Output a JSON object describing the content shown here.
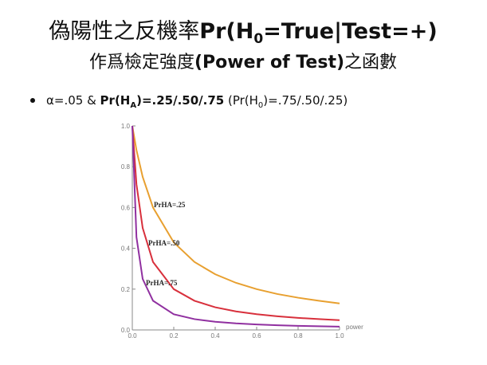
{
  "title": {
    "prefix": "偽陽性之反機率",
    "main": "Pr(H",
    "sub": "0",
    "rest": "=True|Test=+)"
  },
  "subtitle": {
    "prefix": "作爲檢定強度",
    "main": "(Power of Test)",
    "suffix": "之函數"
  },
  "bullet": {
    "a": "α=.05 & ",
    "b": "Pr(H",
    "sub_a": "A",
    "c": ")=.25/.50/.75",
    "d": " (Pr(H",
    "sub_0": "0",
    "e": ")=.75/.50/.25)"
  },
  "chart_data": {
    "type": "line",
    "x_label": "power",
    "x": [
      0,
      0.02,
      0.05,
      0.1,
      0.2,
      0.3,
      0.4,
      0.5,
      0.6,
      0.7,
      0.8,
      0.9,
      1.0
    ],
    "series": [
      {
        "name": "PrHA=.25",
        "color": "#e8a030",
        "values": [
          1,
          0.882,
          0.75,
          0.6,
          0.429,
          0.333,
          0.273,
          0.231,
          0.2,
          0.176,
          0.158,
          0.143,
          0.13
        ]
      },
      {
        "name": "PrHA=.50",
        "color": "#d8303c",
        "values": [
          1,
          0.714,
          0.5,
          0.333,
          0.2,
          0.143,
          0.111,
          0.091,
          0.077,
          0.067,
          0.059,
          0.053,
          0.048
        ]
      },
      {
        "name": "PrHA=.75",
        "color": "#9030a0",
        "values": [
          1,
          0.455,
          0.25,
          0.143,
          0.077,
          0.053,
          0.04,
          0.032,
          0.027,
          0.023,
          0.02,
          0.018,
          0.016
        ]
      }
    ],
    "xlim": [
      0,
      1
    ],
    "ylim": [
      0,
      1
    ],
    "xticks": [
      {
        "value": 0,
        "label": "0.0"
      },
      {
        "value": 0.2,
        "label": "0.2"
      },
      {
        "value": 0.4,
        "label": "0.4"
      },
      {
        "value": 0.6,
        "label": "0.6"
      },
      {
        "value": 0.8,
        "label": "0.8"
      },
      {
        "value": 1,
        "label": "1.0"
      }
    ],
    "yticks": [
      {
        "value": 0,
        "label": "0.0"
      },
      {
        "value": 0.2,
        "label": "0.2"
      },
      {
        "value": 0.4,
        "label": "0.4"
      },
      {
        "value": 0.6,
        "label": "0.6"
      },
      {
        "value": 0.8,
        "label": "0.8"
      },
      {
        "value": 1,
        "label": "1.0"
      }
    ]
  }
}
